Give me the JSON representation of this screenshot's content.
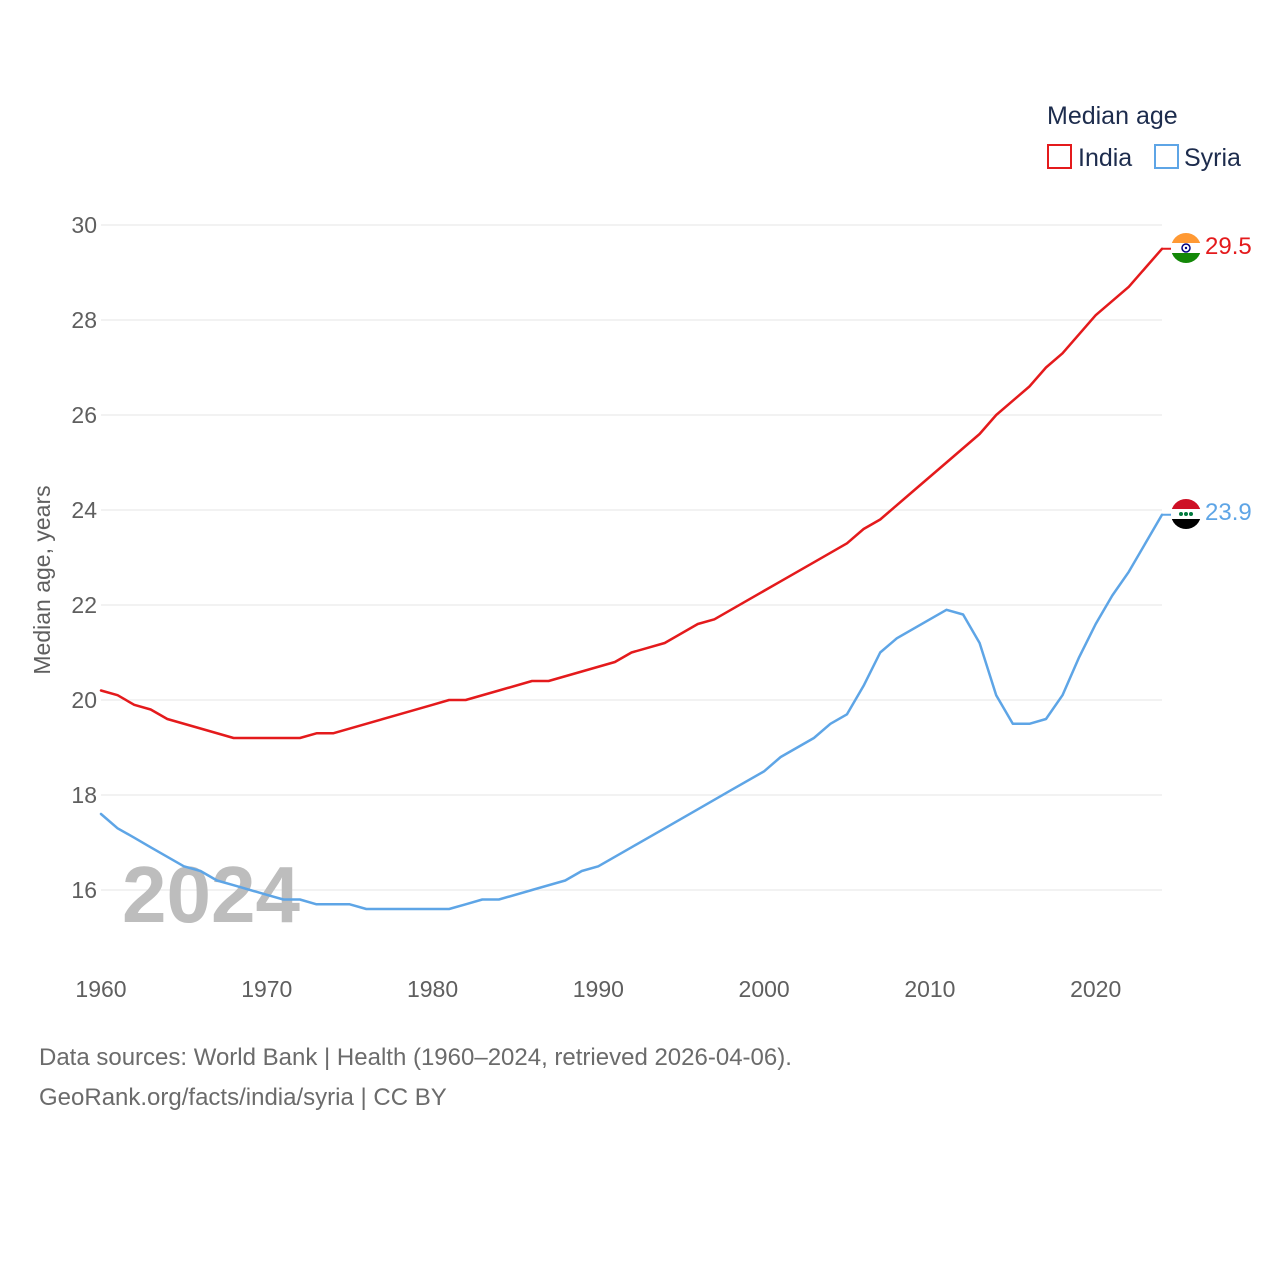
{
  "chart_data": {
    "type": "line",
    "legend_title": "Median age",
    "ylabel": "Median age, years",
    "xlabel": "",
    "watermark_year": "2024",
    "xlim": [
      1960,
      2024
    ],
    "ylim": [
      14.7,
      30.2
    ],
    "x_ticks": [
      1960,
      1970,
      1980,
      1990,
      2000,
      2010,
      2020
    ],
    "y_ticks": [
      16,
      18,
      20,
      22,
      24,
      26,
      28,
      30
    ],
    "legend_placement": "top-right",
    "series": [
      {
        "name": "India",
        "color": "#e41a1c",
        "end_label": "29.5",
        "flag": "india-flag",
        "points": [
          [
            1960,
            20.2
          ],
          [
            1961,
            20.1
          ],
          [
            1962,
            19.9
          ],
          [
            1963,
            19.8
          ],
          [
            1964,
            19.6
          ],
          [
            1966,
            19.4
          ],
          [
            1968,
            19.2
          ],
          [
            1970,
            19.2
          ],
          [
            1972,
            19.2
          ],
          [
            1973,
            19.3
          ],
          [
            1974,
            19.3
          ],
          [
            1976,
            19.5
          ],
          [
            1978,
            19.7
          ],
          [
            1980,
            19.9
          ],
          [
            1981,
            20.0
          ],
          [
            1982,
            20.0
          ],
          [
            1984,
            20.2
          ],
          [
            1986,
            20.4
          ],
          [
            1987,
            20.4
          ],
          [
            1989,
            20.6
          ],
          [
            1991,
            20.8
          ],
          [
            1992,
            21.0
          ],
          [
            1994,
            21.2
          ],
          [
            1996,
            21.6
          ],
          [
            1997,
            21.7
          ],
          [
            1999,
            22.1
          ],
          [
            2001,
            22.5
          ],
          [
            2003,
            22.9
          ],
          [
            2005,
            23.3
          ],
          [
            2006,
            23.6
          ],
          [
            2007,
            23.8
          ],
          [
            2009,
            24.4
          ],
          [
            2011,
            25.0
          ],
          [
            2013,
            25.6
          ],
          [
            2014,
            26.0
          ],
          [
            2016,
            26.6
          ],
          [
            2017,
            27.0
          ],
          [
            2018,
            27.3
          ],
          [
            2020,
            28.1
          ],
          [
            2022,
            28.7
          ],
          [
            2024,
            29.5
          ]
        ]
      },
      {
        "name": "Syria",
        "color": "#5ea5e6",
        "end_label": "23.9",
        "flag": "syria-flag",
        "points": [
          [
            1960,
            17.6
          ],
          [
            1961,
            17.3
          ],
          [
            1962,
            17.1
          ],
          [
            1963,
            16.9
          ],
          [
            1964,
            16.7
          ],
          [
            1965,
            16.5
          ],
          [
            1966,
            16.4
          ],
          [
            1967,
            16.2
          ],
          [
            1968,
            16.1
          ],
          [
            1970,
            15.9
          ],
          [
            1971,
            15.8
          ],
          [
            1972,
            15.8
          ],
          [
            1973,
            15.7
          ],
          [
            1975,
            15.7
          ],
          [
            1976,
            15.6
          ],
          [
            1978,
            15.6
          ],
          [
            1980,
            15.6
          ],
          [
            1981,
            15.6
          ],
          [
            1982,
            15.7
          ],
          [
            1983,
            15.8
          ],
          [
            1984,
            15.8
          ],
          [
            1986,
            16.0
          ],
          [
            1988,
            16.2
          ],
          [
            1989,
            16.4
          ],
          [
            1990,
            16.5
          ],
          [
            1992,
            16.9
          ],
          [
            1994,
            17.3
          ],
          [
            1996,
            17.7
          ],
          [
            1998,
            18.1
          ],
          [
            2000,
            18.5
          ],
          [
            2001,
            18.8
          ],
          [
            2003,
            19.2
          ],
          [
            2004,
            19.5
          ],
          [
            2005,
            19.7
          ],
          [
            2006,
            20.3
          ],
          [
            2007,
            21.0
          ],
          [
            2008,
            21.3
          ],
          [
            2010,
            21.7
          ],
          [
            2011,
            21.9
          ],
          [
            2012,
            21.8
          ],
          [
            2013,
            21.2
          ],
          [
            2014,
            20.1
          ],
          [
            2015,
            19.5
          ],
          [
            2016,
            19.5
          ],
          [
            2017,
            19.6
          ],
          [
            2018,
            20.1
          ],
          [
            2019,
            20.9
          ],
          [
            2020,
            21.6
          ],
          [
            2021,
            22.2
          ],
          [
            2022,
            22.7
          ],
          [
            2023,
            23.3
          ],
          [
            2024,
            23.9
          ]
        ]
      }
    ]
  },
  "footer": {
    "line1": "Data sources: World Bank | Health (1960–2024, retrieved 2026-04-06).",
    "line2": "GeoRank.org/facts/india/syria | CC BY"
  }
}
